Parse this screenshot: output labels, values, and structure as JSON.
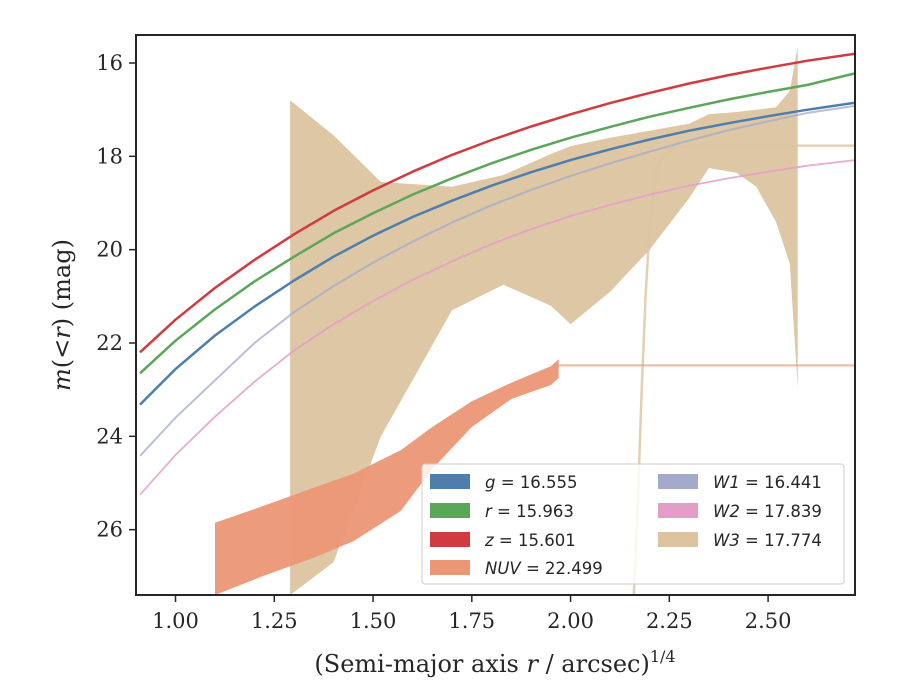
{
  "chart_data": {
    "type": "line",
    "title": "",
    "xlabel": "(Semi-major axis r / arcsec)^{1/4}",
    "xlabel_parts": [
      "(Semi-major axis ",
      "r",
      " / arcsec)",
      "1/4"
    ],
    "ylabel": "m(<r) (mag)",
    "ylabel_parts": [
      "m",
      "(",
      "<",
      "r",
      ")",
      " (mag)"
    ],
    "xlim": [
      0.9,
      2.72
    ],
    "ylim": [
      27.4,
      15.4
    ],
    "y_inverted": true,
    "xticks": [
      1.0,
      1.25,
      1.5,
      1.75,
      2.0,
      2.25,
      2.5
    ],
    "xtick_labels": [
      "1.00",
      "1.25",
      "1.50",
      "1.75",
      "2.00",
      "2.25",
      "2.50"
    ],
    "yticks": [
      16,
      18,
      20,
      22,
      24,
      26
    ],
    "ytick_labels": [
      "16",
      "18",
      "20",
      "22",
      "24",
      "26"
    ],
    "grid": false,
    "legend_placement": "lower-right",
    "colors": {
      "g": "#4e7ead",
      "r": "#5ca65a",
      "z": "#d13a3f",
      "NUV": "#eb9775",
      "W1": "#a3aacb",
      "W2": "#e39ec7",
      "W3": "#dcc4a0"
    },
    "series": [
      {
        "name": "g = 16.555",
        "key": "g",
        "band_label": "g",
        "value_label": "16.555",
        "kind": "curve",
        "x": [
          0.91,
          1.0,
          1.1,
          1.2,
          1.3,
          1.4,
          1.5,
          1.6,
          1.7,
          1.8,
          1.9,
          2.0,
          2.1,
          2.2,
          2.3,
          2.4,
          2.5,
          2.6,
          2.72
        ],
        "y": [
          23.32,
          22.56,
          21.84,
          21.22,
          20.66,
          20.15,
          19.7,
          19.3,
          18.95,
          18.63,
          18.34,
          18.08,
          17.85,
          17.64,
          17.45,
          17.29,
          17.14,
          17.0,
          16.85
        ]
      },
      {
        "name": "r = 15.963",
        "key": "r",
        "band_label": "r",
        "value_label": "15.963",
        "kind": "curve",
        "x": [
          0.91,
          1.0,
          1.1,
          1.2,
          1.3,
          1.4,
          1.5,
          1.6,
          1.7,
          1.8,
          1.9,
          2.0,
          2.1,
          2.2,
          2.3,
          2.4,
          2.5,
          2.6,
          2.72
        ],
        "y": [
          22.65,
          21.95,
          21.28,
          20.68,
          20.15,
          19.65,
          19.22,
          18.82,
          18.47,
          18.15,
          17.86,
          17.6,
          17.37,
          17.15,
          16.96,
          16.78,
          16.62,
          16.47,
          16.22
        ]
      },
      {
        "name": "z = 15.601",
        "key": "z",
        "band_label": "z",
        "value_label": "15.601",
        "kind": "curve",
        "x": [
          0.91,
          1.0,
          1.1,
          1.2,
          1.3,
          1.4,
          1.5,
          1.6,
          1.7,
          1.8,
          1.9,
          2.0,
          2.1,
          2.2,
          2.3,
          2.4,
          2.5,
          2.6,
          2.72
        ],
        "y": [
          22.2,
          21.5,
          20.82,
          20.22,
          19.67,
          19.17,
          18.73,
          18.33,
          17.97,
          17.65,
          17.36,
          17.1,
          16.86,
          16.64,
          16.44,
          16.26,
          16.1,
          15.95,
          15.8
        ]
      },
      {
        "name": "NUV = 22.499",
        "key": "NUV",
        "band_label": "NUV",
        "value_label": "22.499",
        "kind": "band",
        "x": [
          1.1,
          1.22,
          1.35,
          1.45,
          1.57,
          1.65,
          1.75,
          1.85,
          1.95,
          1.97
        ],
        "y_upper": [
          25.85,
          25.5,
          25.1,
          24.8,
          24.3,
          23.8,
          23.25,
          22.85,
          22.5,
          22.35
        ],
        "y_lower": [
          27.4,
          27.0,
          26.6,
          26.25,
          25.6,
          24.7,
          23.8,
          23.2,
          22.9,
          22.75
        ],
        "extension": {
          "x": [
            1.97,
            2.72
          ],
          "y": 22.48
        }
      },
      {
        "name": "W1 = 16.441",
        "key": "W1",
        "band_label": "W1",
        "value_label": "16.441",
        "kind": "curve",
        "x": [
          0.91,
          1.0,
          1.1,
          1.2,
          1.3,
          1.4,
          1.5,
          1.6,
          1.7,
          1.8,
          1.9,
          2.0,
          2.1,
          2.2,
          2.3,
          2.4,
          2.5,
          2.6,
          2.72
        ],
        "y": [
          24.42,
          23.6,
          22.8,
          22.0,
          21.34,
          20.78,
          20.28,
          19.83,
          19.42,
          19.05,
          18.72,
          18.42,
          18.15,
          17.9,
          17.66,
          17.44,
          17.25,
          17.07,
          16.92
        ]
      },
      {
        "name": "W2 = 17.839",
        "key": "W2",
        "band_label": "W2",
        "value_label": "17.839",
        "kind": "curve",
        "x": [
          0.91,
          1.0,
          1.1,
          1.2,
          1.3,
          1.4,
          1.5,
          1.6,
          1.7,
          1.8,
          1.9,
          2.0,
          2.1,
          2.2,
          2.3,
          2.4,
          2.5,
          2.6,
          2.72
        ],
        "y": [
          25.25,
          24.4,
          23.58,
          22.83,
          22.16,
          21.6,
          21.1,
          20.65,
          20.25,
          19.88,
          19.56,
          19.28,
          19.04,
          18.82,
          18.63,
          18.47,
          18.33,
          18.2,
          18.08
        ]
      },
      {
        "name": "W3 = 17.774",
        "key": "W3",
        "band_label": "W3",
        "value_label": "17.774",
        "kind": "band",
        "x": [
          1.29,
          1.4,
          1.52,
          1.7,
          1.83,
          1.95,
          2.0,
          2.1,
          2.2,
          2.3,
          2.35,
          2.42,
          2.47,
          2.52,
          2.555,
          2.575
        ],
        "y_upper": [
          16.8,
          17.55,
          18.55,
          18.65,
          18.4,
          17.95,
          17.78,
          17.6,
          17.45,
          17.3,
          17.1,
          17.05,
          17.0,
          16.95,
          16.6,
          15.65
        ],
        "y_lower": [
          27.4,
          26.7,
          24.0,
          21.3,
          20.75,
          21.2,
          21.6,
          20.9,
          20.0,
          18.9,
          18.25,
          18.35,
          18.65,
          19.4,
          20.3,
          22.95
        ],
        "extension_curve": {
          "x": [
            2.16,
            2.17,
            2.18,
            2.19,
            2.2,
            2.22,
            2.25,
            2.3,
            2.4,
            2.5,
            2.6,
            2.72
          ],
          "y": [
            27.4,
            25.5,
            23.0,
            21.0,
            19.5,
            18.2,
            17.85,
            17.77,
            17.77,
            17.77,
            17.77,
            17.77
          ]
        }
      }
    ]
  }
}
